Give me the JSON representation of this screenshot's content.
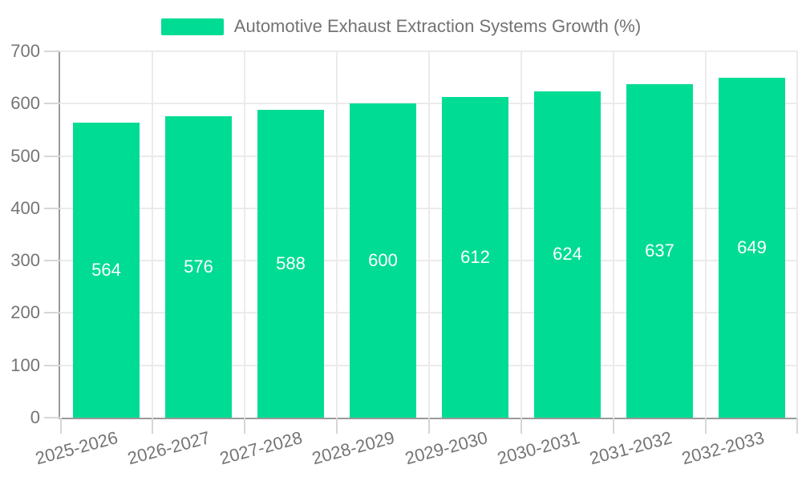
{
  "legend": {
    "label": "Automotive Exhaust Extraction Systems Growth (%)"
  },
  "colors": {
    "bar": "#00dc93",
    "bar_label": "#ffffff",
    "axis_line": "#9a9a9a",
    "grid_line": "#ebebeb",
    "tick_line": "#d6d6d6",
    "text": "#757575",
    "legend_text": "#737373",
    "background": "#ffffff"
  },
  "chart_data": {
    "type": "bar",
    "title": "Automotive Exhaust Extraction Systems Growth (%)",
    "series_name": "Automotive Exhaust Extraction Systems Growth (%)",
    "categories": [
      "2025-2026",
      "2026-2027",
      "2027-2028",
      "2028-2029",
      "2029-2030",
      "2030-2031",
      "2031-2032",
      "2032-2033"
    ],
    "values": [
      564,
      576,
      588,
      600,
      612,
      624,
      637,
      649
    ],
    "bar_labels": [
      "564",
      "576",
      "588",
      "600",
      "612",
      "624",
      "637",
      "649"
    ],
    "xlabel": "",
    "ylabel": "",
    "ylim": [
      0,
      700
    ],
    "yticks": [
      0,
      100,
      200,
      300,
      400,
      500,
      600,
      700
    ],
    "grid": true,
    "legend_position": "top-center",
    "bar_label_position": "inside-center",
    "xtick_rotation_deg": -15
  }
}
